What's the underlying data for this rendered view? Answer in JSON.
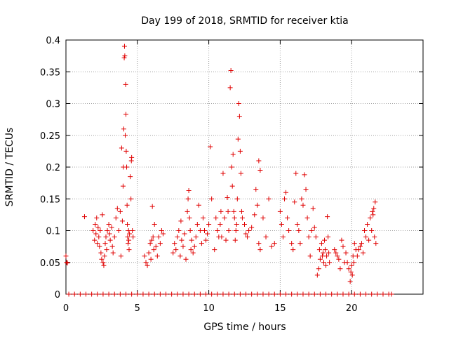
{
  "chart_data": {
    "type": "scatter",
    "title": "Day 199 of 2018, SRMTID for receiver ktia",
    "xlabel": "GPS time / hours",
    "ylabel": "SRMTID / TECUs",
    "xlim": [
      0,
      25
    ],
    "ylim": [
      0,
      0.4
    ],
    "xticks": [
      0,
      5,
      10,
      15,
      20
    ],
    "yticks": [
      0,
      0.05,
      0.1,
      0.15,
      0.2,
      0.25,
      0.3,
      0.35,
      0.4
    ],
    "xtick_labels": [
      "0",
      "5",
      "10",
      "15",
      "20"
    ],
    "ytick_labels": [
      "0",
      "0.05",
      "0.1",
      "0.15",
      "0.2",
      "0.25",
      "0.3",
      "0.35",
      "0.4"
    ],
    "grid": true,
    "marker": "+",
    "marker_color": "#e00000",
    "series": [
      {
        "name": "SRMTID",
        "points": [
          [
            0.0,
            0.06
          ],
          [
            0.05,
            0.05
          ],
          [
            0.1,
            0.049
          ],
          [
            1.3,
            0.122
          ],
          [
            1.9,
            0.1
          ],
          [
            2.0,
            0.085
          ],
          [
            2.05,
            0.11
          ],
          [
            2.1,
            0.095
          ],
          [
            2.15,
            0.12
          ],
          [
            2.2,
            0.08
          ],
          [
            2.25,
            0.105
          ],
          [
            2.3,
            0.09
          ],
          [
            2.35,
            0.075
          ],
          [
            2.4,
            0.1
          ],
          [
            2.45,
            0.065
          ],
          [
            2.5,
            0.055
          ],
          [
            2.55,
            0.125
          ],
          [
            2.6,
            0.05
          ],
          [
            2.65,
            0.045
          ],
          [
            2.7,
            0.06
          ],
          [
            2.75,
            0.08
          ],
          [
            2.8,
            0.09
          ],
          [
            2.85,
            0.07
          ],
          [
            2.9,
            0.1
          ],
          [
            3.0,
            0.11
          ],
          [
            3.05,
            0.095
          ],
          [
            3.1,
            0.085
          ],
          [
            3.2,
            0.105
          ],
          [
            3.25,
            0.075
          ],
          [
            3.3,
            0.065
          ],
          [
            3.4,
            0.09
          ],
          [
            3.5,
            0.12
          ],
          [
            3.6,
            0.135
          ],
          [
            3.7,
            0.1
          ],
          [
            3.8,
            0.13
          ],
          [
            3.85,
            0.06
          ],
          [
            3.9,
            0.23
          ],
          [
            3.95,
            0.115
          ],
          [
            4.0,
            0.17
          ],
          [
            4.02,
            0.2
          ],
          [
            4.05,
            0.26
          ],
          [
            4.08,
            0.372
          ],
          [
            4.1,
            0.39
          ],
          [
            4.12,
            0.375
          ],
          [
            4.15,
            0.25
          ],
          [
            4.18,
            0.33
          ],
          [
            4.2,
            0.283
          ],
          [
            4.22,
            0.225
          ],
          [
            4.25,
            0.2
          ],
          [
            4.28,
            0.14
          ],
          [
            4.3,
            0.11
          ],
          [
            4.32,
            0.09
          ],
          [
            4.35,
            0.08
          ],
          [
            4.38,
            0.1
          ],
          [
            4.4,
            0.085
          ],
          [
            4.42,
            0.07
          ],
          [
            4.45,
            0.095
          ],
          [
            4.5,
            0.185
          ],
          [
            4.55,
            0.15
          ],
          [
            4.58,
            0.21
          ],
          [
            4.6,
            0.215
          ],
          [
            4.65,
            0.1
          ],
          [
            4.7,
            0.09
          ],
          [
            5.5,
            0.06
          ],
          [
            5.6,
            0.05
          ],
          [
            5.7,
            0.045
          ],
          [
            5.8,
            0.065
          ],
          [
            5.9,
            0.08
          ],
          [
            5.95,
            0.055
          ],
          [
            6.0,
            0.085
          ],
          [
            6.05,
            0.138
          ],
          [
            6.1,
            0.09
          ],
          [
            6.15,
            0.07
          ],
          [
            6.2,
            0.11
          ],
          [
            6.3,
            0.075
          ],
          [
            6.4,
            0.06
          ],
          [
            6.5,
            0.09
          ],
          [
            6.6,
            0.08
          ],
          [
            6.7,
            0.1
          ],
          [
            6.8,
            0.095
          ],
          [
            7.5,
            0.065
          ],
          [
            7.6,
            0.08
          ],
          [
            7.7,
            0.07
          ],
          [
            7.8,
            0.09
          ],
          [
            7.9,
            0.1
          ],
          [
            8.0,
            0.06
          ],
          [
            8.05,
            0.115
          ],
          [
            8.1,
            0.085
          ],
          [
            8.2,
            0.075
          ],
          [
            8.3,
            0.095
          ],
          [
            8.4,
            0.055
          ],
          [
            8.5,
            0.13
          ],
          [
            8.55,
            0.15
          ],
          [
            8.6,
            0.163
          ],
          [
            8.65,
            0.12
          ],
          [
            8.7,
            0.1
          ],
          [
            8.75,
            0.07
          ],
          [
            8.8,
            0.085
          ],
          [
            8.9,
            0.065
          ],
          [
            9.0,
            0.075
          ],
          [
            9.1,
            0.09
          ],
          [
            9.2,
            0.11
          ],
          [
            9.3,
            0.14
          ],
          [
            9.4,
            0.1
          ],
          [
            9.5,
            0.08
          ],
          [
            9.6,
            0.12
          ],
          [
            9.7,
            0.1
          ],
          [
            9.8,
            0.085
          ],
          [
            9.9,
            0.095
          ],
          [
            10.0,
            0.11
          ],
          [
            10.1,
            0.232
          ],
          [
            10.2,
            0.15
          ],
          [
            10.4,
            0.07
          ],
          [
            10.5,
            0.12
          ],
          [
            10.6,
            0.1
          ],
          [
            10.7,
            0.09
          ],
          [
            10.8,
            0.11
          ],
          [
            10.85,
            0.13
          ],
          [
            10.9,
            0.09
          ],
          [
            11.0,
            0.19
          ],
          [
            11.1,
            0.12
          ],
          [
            11.2,
            0.085
          ],
          [
            11.3,
            0.152
          ],
          [
            11.35,
            0.13
          ],
          [
            11.4,
            0.1
          ],
          [
            11.5,
            0.325
          ],
          [
            11.55,
            0.352
          ],
          [
            11.6,
            0.2
          ],
          [
            11.65,
            0.17
          ],
          [
            11.7,
            0.22
          ],
          [
            11.75,
            0.13
          ],
          [
            11.8,
            0.12
          ],
          [
            11.85,
            0.085
          ],
          [
            11.9,
            0.1
          ],
          [
            11.95,
            0.11
          ],
          [
            12.0,
            0.15
          ],
          [
            12.05,
            0.244
          ],
          [
            12.1,
            0.3
          ],
          [
            12.15,
            0.28
          ],
          [
            12.2,
            0.225
          ],
          [
            12.25,
            0.19
          ],
          [
            12.3,
            0.13
          ],
          [
            12.35,
            0.12
          ],
          [
            12.5,
            0.11
          ],
          [
            12.6,
            0.095
          ],
          [
            12.7,
            0.09
          ],
          [
            12.8,
            0.1
          ],
          [
            13.0,
            0.105
          ],
          [
            13.2,
            0.125
          ],
          [
            13.3,
            0.165
          ],
          [
            13.4,
            0.14
          ],
          [
            13.5,
            0.21
          ],
          [
            13.6,
            0.195
          ],
          [
            13.5,
            0.08
          ],
          [
            13.6,
            0.07
          ],
          [
            13.8,
            0.12
          ],
          [
            14.0,
            0.09
          ],
          [
            14.2,
            0.15
          ],
          [
            14.4,
            0.075
          ],
          [
            14.6,
            0.08
          ],
          [
            15.0,
            0.13
          ],
          [
            15.1,
            0.11
          ],
          [
            15.2,
            0.09
          ],
          [
            15.3,
            0.15
          ],
          [
            15.4,
            0.16
          ],
          [
            15.5,
            0.12
          ],
          [
            15.6,
            0.1
          ],
          [
            15.8,
            0.08
          ],
          [
            15.9,
            0.07
          ],
          [
            16.0,
            0.145
          ],
          [
            16.1,
            0.19
          ],
          [
            16.2,
            0.11
          ],
          [
            16.3,
            0.1
          ],
          [
            16.4,
            0.08
          ],
          [
            16.5,
            0.15
          ],
          [
            16.6,
            0.14
          ],
          [
            16.7,
            0.188
          ],
          [
            16.8,
            0.165
          ],
          [
            16.9,
            0.12
          ],
          [
            17.0,
            0.09
          ],
          [
            17.1,
            0.06
          ],
          [
            17.2,
            0.1
          ],
          [
            17.3,
            0.135
          ],
          [
            17.4,
            0.105
          ],
          [
            17.5,
            0.09
          ],
          [
            17.6,
            0.03
          ],
          [
            17.7,
            0.04
          ],
          [
            17.75,
            0.07
          ],
          [
            17.8,
            0.055
          ],
          [
            17.9,
            0.08
          ],
          [
            17.95,
            0.06
          ],
          [
            18.0,
            0.065
          ],
          [
            18.05,
            0.05
          ],
          [
            18.1,
            0.085
          ],
          [
            18.15,
            0.07
          ],
          [
            18.2,
            0.045
          ],
          [
            18.25,
            0.06
          ],
          [
            18.3,
            0.122
          ],
          [
            18.35,
            0.09
          ],
          [
            18.4,
            0.065
          ],
          [
            18.45,
            0.05
          ],
          [
            18.8,
            0.07
          ],
          [
            18.9,
            0.065
          ],
          [
            19.0,
            0.06
          ],
          [
            19.1,
            0.055
          ],
          [
            19.2,
            0.04
          ],
          [
            19.3,
            0.085
          ],
          [
            19.4,
            0.075
          ],
          [
            19.5,
            0.05
          ],
          [
            19.6,
            0.065
          ],
          [
            19.7,
            0.05
          ],
          [
            19.8,
            0.04
          ],
          [
            19.9,
            0.02
          ],
          [
            19.95,
            0.035
          ],
          [
            20.0,
            0.045
          ],
          [
            20.05,
            0.03
          ],
          [
            20.1,
            0.06
          ],
          [
            20.15,
            0.05
          ],
          [
            20.2,
            0.08
          ],
          [
            20.3,
            0.07
          ],
          [
            20.4,
            0.06
          ],
          [
            20.5,
            0.07
          ],
          [
            20.6,
            0.075
          ],
          [
            20.7,
            0.08
          ],
          [
            20.8,
            0.065
          ],
          [
            20.9,
            0.1
          ],
          [
            21.0,
            0.09
          ],
          [
            21.1,
            0.11
          ],
          [
            21.2,
            0.085
          ],
          [
            21.3,
            0.12
          ],
          [
            21.4,
            0.1
          ],
          [
            21.45,
            0.13
          ],
          [
            21.5,
            0.125
          ],
          [
            21.55,
            0.135
          ],
          [
            21.6,
            0.09
          ],
          [
            21.65,
            0.145
          ],
          [
            21.7,
            0.08
          ],
          [
            0.2,
            0.0
          ],
          [
            0.6,
            0.0
          ],
          [
            1.0,
            0.0
          ],
          [
            1.4,
            0.0
          ],
          [
            1.8,
            0.0
          ],
          [
            2.2,
            0.0
          ],
          [
            2.6,
            0.0
          ],
          [
            3.0,
            0.0
          ],
          [
            3.4,
            0.0
          ],
          [
            3.8,
            0.0
          ],
          [
            4.2,
            0.0
          ],
          [
            4.6,
            0.0
          ],
          [
            5.0,
            0.0
          ],
          [
            5.4,
            0.0
          ],
          [
            5.8,
            0.0
          ],
          [
            6.2,
            0.0
          ],
          [
            6.6,
            0.0
          ],
          [
            7.0,
            0.0
          ],
          [
            7.4,
            0.0
          ],
          [
            7.8,
            0.0
          ],
          [
            8.2,
            0.0
          ],
          [
            8.6,
            0.0
          ],
          [
            9.0,
            0.0
          ],
          [
            9.4,
            0.0
          ],
          [
            9.8,
            0.0
          ],
          [
            10.2,
            0.0
          ],
          [
            10.6,
            0.0
          ],
          [
            11.0,
            0.0
          ],
          [
            11.4,
            0.0
          ],
          [
            11.8,
            0.0
          ],
          [
            12.2,
            0.0
          ],
          [
            12.6,
            0.0
          ],
          [
            13.0,
            0.0
          ],
          [
            13.4,
            0.0
          ],
          [
            13.8,
            0.0
          ],
          [
            14.2,
            0.0
          ],
          [
            14.6,
            0.0
          ],
          [
            15.0,
            0.0
          ],
          [
            15.4,
            0.0
          ],
          [
            15.8,
            0.0
          ],
          [
            16.2,
            0.0
          ],
          [
            16.6,
            0.0
          ],
          [
            17.0,
            0.0
          ],
          [
            17.4,
            0.0
          ],
          [
            17.8,
            0.0
          ],
          [
            18.2,
            0.0
          ],
          [
            18.6,
            0.0
          ],
          [
            19.0,
            0.0
          ],
          [
            19.4,
            0.0
          ],
          [
            19.8,
            0.0
          ],
          [
            20.2,
            0.0
          ],
          [
            20.6,
            0.0
          ],
          [
            21.0,
            0.0
          ],
          [
            21.4,
            0.0
          ],
          [
            21.8,
            0.0
          ],
          [
            22.2,
            0.0
          ],
          [
            22.6,
            0.0
          ],
          [
            22.8,
            0.0
          ]
        ]
      }
    ]
  }
}
